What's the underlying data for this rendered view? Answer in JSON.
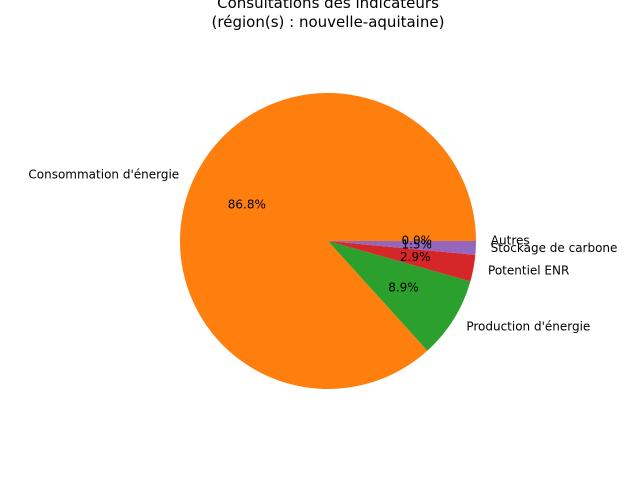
{
  "chart_data": {
    "type": "pie",
    "title_line1": "Consultations des indicateurs",
    "title_line2": "(région(s) : nouvelle-aquitaine)",
    "slices": [
      {
        "label": "Autres",
        "value": 0.0,
        "pct_label": "0.0%",
        "color": "#1f77b4"
      },
      {
        "label": "Consommation d'énergie",
        "value": 86.8,
        "pct_label": "86.8%",
        "color": "#ff7f0e"
      },
      {
        "label": "Production d'énergie",
        "value": 8.9,
        "pct_label": "8.9%",
        "color": "#2ca02c"
      },
      {
        "label": "Potentiel ENR",
        "value": 2.9,
        "pct_label": "2.9%",
        "color": "#d62728"
      },
      {
        "label": "Stockage de carbone",
        "value": 1.5,
        "pct_label": "1.5%",
        "color": "#9467bd"
      }
    ]
  }
}
